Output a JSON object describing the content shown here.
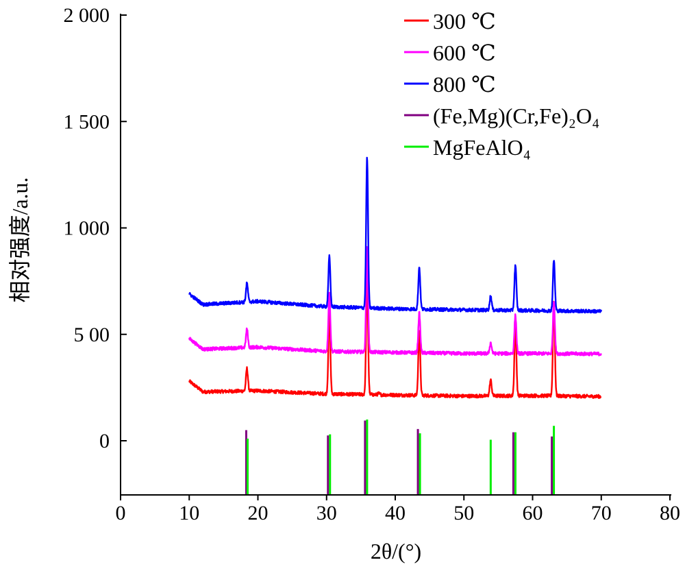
{
  "chart_data": {
    "type": "line",
    "title": "",
    "xlabel": "2θ/(°)",
    "ylabel": "相对强度/a.u.",
    "xlim": [
      0,
      80
    ],
    "ylim": [
      -250,
      2000
    ],
    "x_ticks": [
      0,
      10,
      20,
      30,
      40,
      50,
      60,
      70,
      80
    ],
    "x_tick_labels": [
      "0",
      "10",
      "20",
      "30",
      "40",
      "50",
      "60",
      "70",
      "80"
    ],
    "y_ticks": [
      0,
      500,
      1000,
      1500,
      2000
    ],
    "y_tick_labels": [
      "0",
      "5 00",
      "1 000",
      "1 500",
      "2 000"
    ],
    "grid": false,
    "legend_position": "top-right",
    "series": [
      {
        "name": "300 ℃",
        "color": "#ff0000",
        "baseline": [
          [
            10,
            280
          ],
          [
            12,
            230
          ],
          [
            20,
            235
          ],
          [
            30,
            220
          ],
          [
            40,
            215
          ],
          [
            50,
            210
          ],
          [
            60,
            212
          ],
          [
            70,
            208
          ]
        ],
        "peaks": [
          [
            18.4,
            340
          ],
          [
            30.4,
            610
          ],
          [
            35.9,
            760
          ],
          [
            37.6,
            222
          ],
          [
            43.5,
            520
          ],
          [
            53.9,
            285
          ],
          [
            57.5,
            560
          ],
          [
            63.1,
            660
          ]
        ]
      },
      {
        "name": "600 ℃",
        "color": "#ff00ff",
        "baseline": [
          [
            10,
            480
          ],
          [
            12,
            430
          ],
          [
            20,
            440
          ],
          [
            30,
            420
          ],
          [
            40,
            415
          ],
          [
            50,
            410
          ],
          [
            60,
            410
          ],
          [
            70,
            408
          ]
        ],
        "peaks": [
          [
            18.4,
            525
          ],
          [
            30.4,
            695
          ],
          [
            35.9,
            910
          ],
          [
            43.5,
            600
          ],
          [
            53.9,
            460
          ],
          [
            57.5,
            590
          ],
          [
            63.1,
            655
          ]
        ]
      },
      {
        "name": "800 ℃",
        "color": "#0000ff",
        "baseline": [
          [
            10,
            690
          ],
          [
            12,
            640
          ],
          [
            20,
            655
          ],
          [
            30,
            630
          ],
          [
            40,
            620
          ],
          [
            50,
            615
          ],
          [
            60,
            612
          ],
          [
            70,
            608
          ]
        ],
        "peaks": [
          [
            18.4,
            740
          ],
          [
            30.4,
            865
          ],
          [
            35.9,
            1330
          ],
          [
            43.5,
            815
          ],
          [
            53.9,
            680
          ],
          [
            57.5,
            825
          ],
          [
            63.1,
            850
          ]
        ]
      },
      {
        "name": "(Fe,Mg)(Cr,Fe)₂O₄",
        "color": "#800080",
        "type": "reference",
        "sticks": [
          [
            18.3,
            50
          ],
          [
            30.2,
            25
          ],
          [
            35.6,
            95
          ],
          [
            43.3,
            55
          ],
          [
            57.2,
            40
          ],
          [
            62.8,
            20
          ]
        ]
      },
      {
        "name": "MgFeAlO₄",
        "color": "#00ee00",
        "type": "reference",
        "sticks": [
          [
            18.5,
            10
          ],
          [
            30.5,
            30
          ],
          [
            35.9,
            100
          ],
          [
            43.6,
            35
          ],
          [
            53.9,
            5
          ],
          [
            57.5,
            40
          ],
          [
            63.1,
            70
          ]
        ]
      }
    ]
  },
  "legend": [
    {
      "label": "300 ℃",
      "color": "#ff0000"
    },
    {
      "label": "600 ℃",
      "color": "#ff00ff"
    },
    {
      "label": "800 ℃",
      "color": "#0000ff"
    },
    {
      "label": "(Fe,Mg)(Cr,Fe)₂O₄",
      "color": "#800080"
    },
    {
      "label": "MgFeAlO₄",
      "color": "#00ee00"
    }
  ]
}
